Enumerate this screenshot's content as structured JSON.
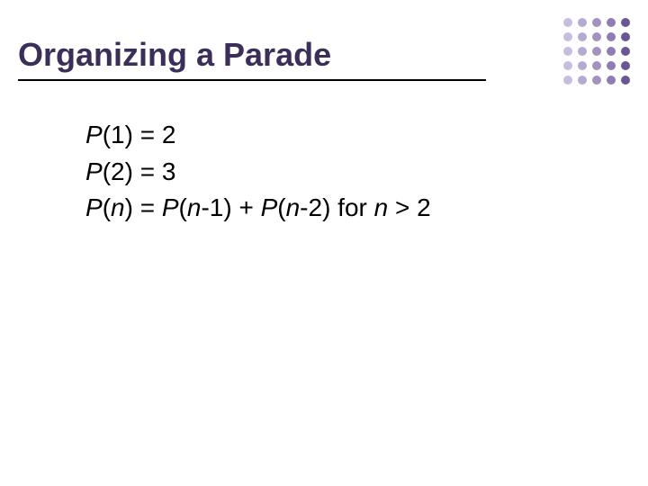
{
  "slide": {
    "title": "Organizing a Parade",
    "title_color": "#3b2e58",
    "title_fontsize": 36,
    "underline_color": "#000000",
    "body_fontsize": 28,
    "background_color": "#ffffff",
    "equations": [
      {
        "func": "P",
        "arg": "1",
        "rhs_plain": " = 2"
      },
      {
        "func": "P",
        "arg": "2",
        "rhs_plain": " = 3"
      }
    ],
    "recurrence": {
      "funcL": "P",
      "argL": "n",
      "eq": " = ",
      "func1": "P",
      "arg1_pre": "(",
      "arg1_it": "n",
      "arg1_post": "-1) + ",
      "func2": "P",
      "arg2_pre": "(",
      "arg2_it": "n",
      "arg2_post": "-2)   for ",
      "cond_it": "n",
      "cond_post": " > 2"
    }
  },
  "decoration": {
    "dot_radius": 5,
    "col_spacing": 16,
    "row_spacing": 16,
    "cols": 5,
    "rows": 5,
    "colors_by_col": [
      "#c8bddb",
      "#b7aad0",
      "#a393c1",
      "#8f7cb3",
      "#6a5693"
    ]
  }
}
